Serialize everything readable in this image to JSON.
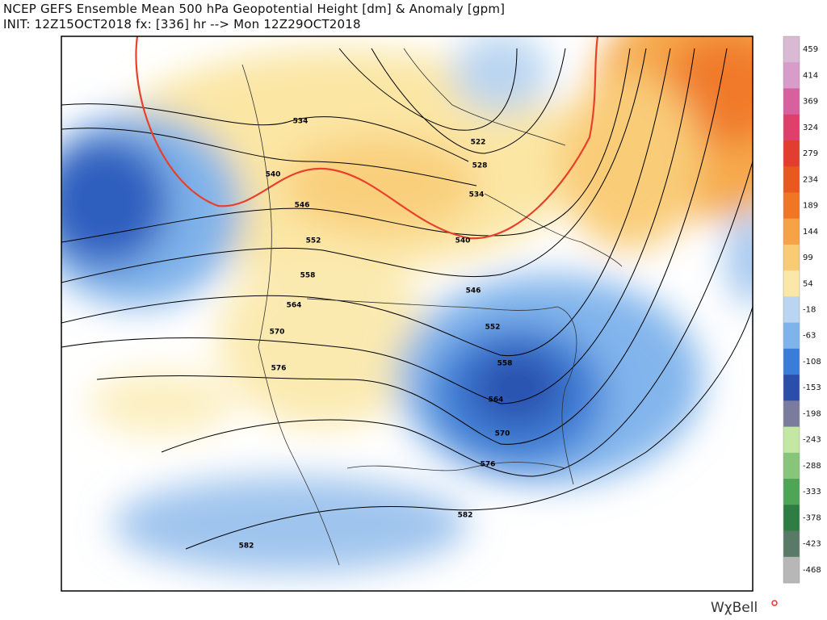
{
  "header": {
    "title": "NCEP GEFS Ensemble Mean 500 hPa Geopotential Height [dm] & Anomaly [gpm]",
    "subtitle": "INIT: 12Z15OCT2018 fx: [336] hr --> Mon 12Z29OCT2018"
  },
  "contour_labels": [
    "534",
    "540",
    "522",
    "528",
    "534",
    "546",
    "552",
    "558",
    "564",
    "570",
    "576",
    "546",
    "552",
    "558",
    "564",
    "570",
    "576",
    "582",
    "582",
    "540"
  ],
  "colorbar": {
    "labels": [
      459,
      414,
      369,
      324,
      279,
      234,
      189,
      144,
      99,
      54,
      -18,
      -63,
      -108,
      -153,
      -198,
      -243,
      -288,
      -333,
      -378,
      -423,
      -468
    ],
    "colors": [
      "#d9b9d3",
      "#d79cc9",
      "#d7619f",
      "#df3f6a",
      "#e23d2e",
      "#e9581f",
      "#f07626",
      "#f5a346",
      "#f9cb75",
      "#fbe8a9",
      "#b9d5f1",
      "#7fb3eb",
      "#3a7dd8",
      "#2a4ea9",
      "#7b7b9e",
      "#c4e7a4",
      "#86c57a",
      "#4ea556",
      "#2e7e43",
      "#5a7a68",
      "#b7b7b7"
    ]
  },
  "brand": "WχBell"
}
